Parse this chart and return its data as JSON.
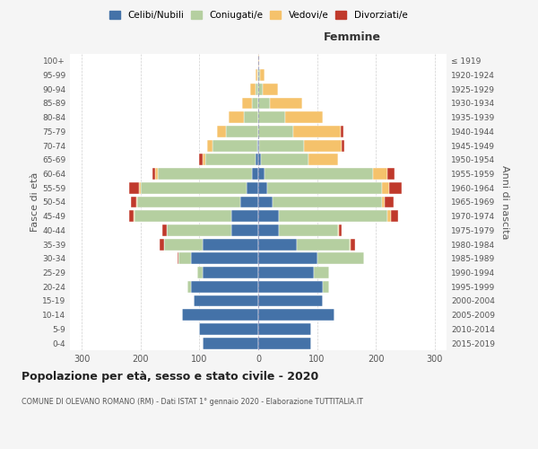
{
  "age_groups": [
    "0-4",
    "5-9",
    "10-14",
    "15-19",
    "20-24",
    "25-29",
    "30-34",
    "35-39",
    "40-44",
    "45-49",
    "50-54",
    "55-59",
    "60-64",
    "65-69",
    "70-74",
    "75-79",
    "80-84",
    "85-89",
    "90-94",
    "95-99",
    "100+"
  ],
  "birth_years": [
    "2015-2019",
    "2010-2014",
    "2005-2009",
    "2000-2004",
    "1995-1999",
    "1990-1994",
    "1985-1989",
    "1980-1984",
    "1975-1979",
    "1970-1974",
    "1965-1969",
    "1960-1964",
    "1955-1959",
    "1950-1954",
    "1945-1949",
    "1940-1944",
    "1935-1939",
    "1930-1934",
    "1925-1929",
    "1920-1924",
    "≤ 1919"
  ],
  "males": {
    "celibi": [
      95,
      100,
      130,
      110,
      115,
      95,
      115,
      95,
      45,
      45,
      30,
      20,
      10,
      5,
      2,
      0,
      0,
      0,
      0,
      0,
      0
    ],
    "coniugati": [
      0,
      0,
      0,
      0,
      5,
      8,
      20,
      65,
      110,
      165,
      175,
      180,
      160,
      85,
      75,
      55,
      25,
      10,
      5,
      2,
      0
    ],
    "vedovi": [
      0,
      0,
      0,
      0,
      0,
      0,
      0,
      0,
      0,
      2,
      2,
      2,
      5,
      5,
      10,
      15,
      25,
      18,
      8,
      3,
      0
    ],
    "divorziati": [
      0,
      0,
      0,
      0,
      0,
      0,
      2,
      8,
      8,
      8,
      10,
      18,
      5,
      5,
      0,
      0,
      0,
      0,
      0,
      0,
      0
    ]
  },
  "females": {
    "nubili": [
      90,
      90,
      130,
      110,
      110,
      95,
      100,
      65,
      35,
      35,
      25,
      15,
      10,
      5,
      2,
      0,
      0,
      0,
      0,
      0,
      0
    ],
    "coniugate": [
      0,
      0,
      0,
      0,
      10,
      25,
      80,
      90,
      100,
      185,
      185,
      195,
      185,
      80,
      75,
      60,
      45,
      20,
      8,
      3,
      0
    ],
    "vedove": [
      0,
      0,
      0,
      0,
      0,
      0,
      0,
      2,
      2,
      5,
      5,
      12,
      25,
      50,
      65,
      80,
      65,
      55,
      25,
      8,
      2
    ],
    "divorziate": [
      0,
      0,
      0,
      0,
      0,
      0,
      0,
      8,
      5,
      12,
      15,
      22,
      12,
      0,
      5,
      5,
      0,
      0,
      0,
      0,
      0
    ]
  },
  "colors": {
    "celibi": "#4472a8",
    "coniugati": "#b5cfa0",
    "vedovi": "#f5c26b",
    "divorziati": "#c0392b"
  },
  "xlim": 320,
  "title": "Popolazione per età, sesso e stato civile - 2020",
  "subtitle": "COMUNE DI OLEVANO ROMANO (RM) - Dati ISTAT 1° gennaio 2020 - Elaborazione TUTTITALIA.IT",
  "ylabel_left": "Fasce di età",
  "ylabel_right": "Anni di nascita",
  "xlabel_femmine": "Femmine",
  "legend_labels": [
    "Celibi/Nubili",
    "Coniugati/e",
    "Vedovi/e",
    "Divorziati/e"
  ],
  "bg_color": "#f5f5f5",
  "plot_bg_color": "#ffffff",
  "grid_color": "#cccccc"
}
